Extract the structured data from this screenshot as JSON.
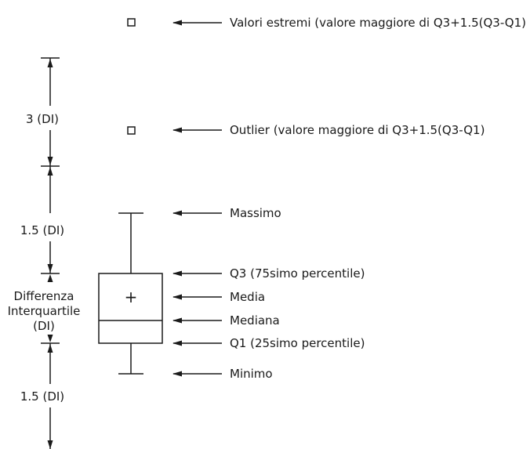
{
  "labels": {
    "extreme": "Valori estremi (valore maggiore di Q3+1.5(Q3-Q1)",
    "outlier": "Outlier (valore maggiore di Q3+1.5(Q3-Q1)",
    "maximum": "Massimo",
    "q3": "Q3 (75simo percentile)",
    "mean": "Media",
    "median": "Mediana",
    "q1": "Q1 (25simo percentile)",
    "minimum": "Minimo"
  },
  "dimensions": {
    "three_iqr": "3 (DI)",
    "upper_one_half_iqr": "1.5 (DI)",
    "iqr_line1": "Differenza",
    "iqr_line2": "Interquartile",
    "iqr_line3": "(DI)",
    "lower_one_half_iqr": "1.5 (DI)"
  },
  "symbols": {
    "mean_marker": "+"
  }
}
